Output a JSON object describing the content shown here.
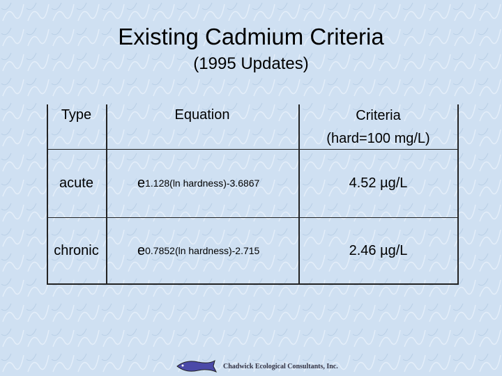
{
  "header": {
    "title": "Existing Cadmium Criteria",
    "subtitle": "(1995 Updates)"
  },
  "table": {
    "header": [
      "Type",
      "Equation",
      "Criteria",
      "(hard=100 mg/L)"
    ],
    "rows": [
      {
        "type": "acute",
        "equation": {
          "base": "e",
          "exponent": "1.128(ln hardness)-3.6867"
        },
        "criteria": "4.52 µg/L"
      },
      {
        "type": "chronic",
        "equation": {
          "base": "e",
          "exponent": "0.7852(ln hardness)-2.715"
        },
        "criteria": "2.46 µg/L"
      }
    ]
  },
  "footer": {
    "logo_text": "Chadwick Ecological Consultants, Inc."
  }
}
